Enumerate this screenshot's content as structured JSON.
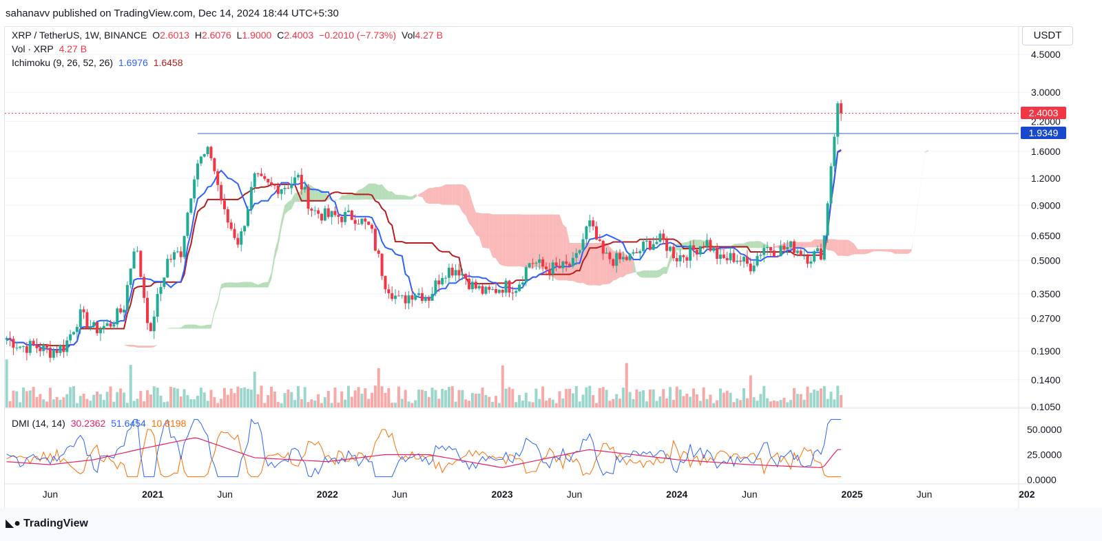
{
  "header": {
    "publisher_line": "sahanavv published on TradingView.com, Dec 14, 2024 18:44 UTC+5:30"
  },
  "legend": {
    "symbol": "XRP / TetherUS, 1W, BINANCE",
    "o_label": "O",
    "o_value": "2.6013",
    "h_label": "H",
    "h_value": "2.6076",
    "l_label": "L",
    "l_value": "1.9000",
    "c_label": "C",
    "c_value": "2.4003",
    "change": "−0.2010 (−7.73%)",
    "vol_label": "Vol",
    "vol_value": "4.27 B",
    "vol_line_label": "Vol · XRP",
    "vol_line_value": "4.27 B",
    "ichimoku_label": "Ichimoku (9, 26, 52, 26)",
    "ichimoku_v1": "1.6976",
    "ichimoku_v2": "1.6458",
    "dmi_label": "DMI (14, 14)",
    "dmi_v1": "30.2362",
    "dmi_v2": "51.6454",
    "dmi_v3": "10.8198"
  },
  "price_axis": {
    "unit": "USDT",
    "current_price_badge": "2.4003",
    "level_badge": "1.9349"
  },
  "footer": {
    "brand": "TradingView"
  },
  "colors": {
    "up": "#22ab94",
    "down": "#f23645",
    "tenkan": "#2962ff",
    "kijun": "#b71c1c",
    "cloud_bull": "#a5d6a7",
    "cloud_bear": "#f7a9a7",
    "vol_up": "#9ad6cc",
    "vol_down": "#f7a9a7",
    "di_plus": "#2962ff",
    "di_minus": "#ff6d00",
    "adx": "#e91e63",
    "level_line": "#2962ff",
    "badge_red": "#f23645",
    "badge_blue": "#1848cc"
  },
  "chart_data": {
    "type": "candlestick",
    "interval": "1W",
    "y_scale": "log",
    "y_ticks": [
      "4.5000",
      "3.0000",
      "2.2000",
      "1.6000",
      "1.2000",
      "0.9000",
      "0.6500",
      "0.5000",
      "0.3500",
      "0.2700",
      "0.1900",
      "0.1400",
      "0.1050"
    ],
    "x_ticks": [
      "Jun",
      "2021",
      "Jun",
      "2022",
      "Jun",
      "2023",
      "Jun",
      "2024",
      "Jun",
      "2025",
      "Jun",
      "202"
    ],
    "dmi_ticks": [
      "50.0000",
      "25.0000",
      "0.0000"
    ],
    "horizontal_level": 1.9349,
    "last_close": 2.4003,
    "price_path": [
      [
        "2020-03",
        0.22
      ],
      [
        "2020-04",
        0.2
      ],
      [
        "2020-05",
        0.2
      ],
      [
        "2020-06",
        0.19
      ],
      [
        "2020-07",
        0.2
      ],
      [
        "2020-08",
        0.28
      ],
      [
        "2020-09",
        0.24
      ],
      [
        "2020-10",
        0.25
      ],
      [
        "2020-11",
        0.3
      ],
      [
        "2020-11-24",
        0.6
      ],
      [
        "2020-12",
        0.52
      ],
      [
        "2020-12-28",
        0.22
      ],
      [
        "2021-01",
        0.27
      ],
      [
        "2021-02",
        0.5
      ],
      [
        "2021-03",
        0.55
      ],
      [
        "2021-04",
        1.4
      ],
      [
        "2021-05",
        1.6
      ],
      [
        "2021-06",
        0.8
      ],
      [
        "2021-07",
        0.6
      ],
      [
        "2021-08",
        1.2
      ],
      [
        "2021-09",
        1.1
      ],
      [
        "2021-10",
        1.1
      ],
      [
        "2021-11",
        1.2
      ],
      [
        "2021-12",
        0.85
      ],
      [
        "2022-01",
        0.8
      ],
      [
        "2022-02",
        0.8
      ],
      [
        "2022-03",
        0.8
      ],
      [
        "2022-04",
        0.7
      ],
      [
        "2022-05",
        0.4
      ],
      [
        "2022-06",
        0.32
      ],
      [
        "2022-07",
        0.36
      ],
      [
        "2022-08",
        0.34
      ],
      [
        "2022-09",
        0.45
      ],
      [
        "2022-10",
        0.46
      ],
      [
        "2022-11",
        0.38
      ],
      [
        "2022-12",
        0.35
      ],
      [
        "2023-01",
        0.38
      ],
      [
        "2023-02",
        0.38
      ],
      [
        "2023-03",
        0.5
      ],
      [
        "2023-04",
        0.46
      ],
      [
        "2023-05",
        0.46
      ],
      [
        "2023-06",
        0.48
      ],
      [
        "2023-07",
        0.75
      ],
      [
        "2023-08",
        0.52
      ],
      [
        "2023-09",
        0.5
      ],
      [
        "2023-10",
        0.52
      ],
      [
        "2023-11",
        0.6
      ],
      [
        "2023-12",
        0.62
      ],
      [
        "2024-01",
        0.52
      ],
      [
        "2024-02",
        0.55
      ],
      [
        "2024-03",
        0.62
      ],
      [
        "2024-04",
        0.5
      ],
      [
        "2024-05",
        0.52
      ],
      [
        "2024-06",
        0.47
      ],
      [
        "2024-07",
        0.58
      ],
      [
        "2024-08",
        0.56
      ],
      [
        "2024-09",
        0.58
      ],
      [
        "2024-10",
        0.52
      ],
      [
        "2024-11",
        0.55
      ],
      [
        "2024-11-18",
        1.4
      ],
      [
        "2024-12",
        2.6
      ],
      [
        "2024-12-09",
        2.4003
      ]
    ],
    "adx_approx": [
      [
        "2020-03",
        18
      ],
      [
        "2020-06",
        15
      ],
      [
        "2020-09",
        20
      ],
      [
        "2020-12",
        30
      ],
      [
        "2021-04",
        42
      ],
      [
        "2021-08",
        22
      ],
      [
        "2022-01",
        18
      ],
      [
        "2022-05",
        25
      ],
      [
        "2022-08",
        25
      ],
      [
        "2023-01",
        12
      ],
      [
        "2023-07",
        30
      ],
      [
        "2024-01",
        20
      ],
      [
        "2024-06",
        15
      ],
      [
        "2024-11",
        12
      ],
      [
        "2024-12",
        30
      ]
    ]
  }
}
